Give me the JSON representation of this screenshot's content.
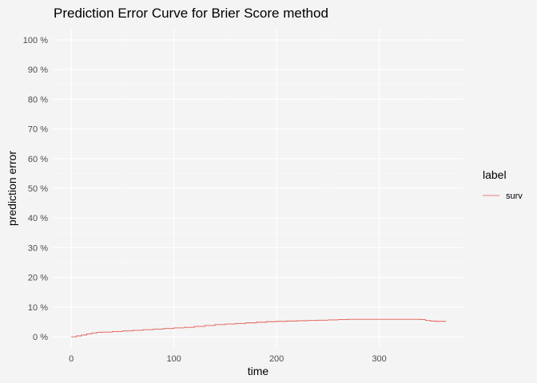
{
  "chart_data": {
    "type": "line",
    "title": "Prediction Error Curve for Brier Score method",
    "xlabel": "time",
    "ylabel": "prediction error",
    "xlim": [
      -18,
      382
    ],
    "ylim": [
      -0.04,
      1.04
    ],
    "x_ticks": [
      0,
      100,
      200,
      300
    ],
    "x_tick_labels": [
      "0",
      "100",
      "200",
      "300"
    ],
    "y_ticks": [
      0,
      0.1,
      0.2,
      0.3,
      0.4,
      0.5,
      0.6,
      0.7,
      0.8,
      0.9,
      1.0
    ],
    "y_tick_labels": [
      "0 %",
      "10 %",
      "20 %",
      "30 %",
      "40 %",
      "50 %",
      "60 %",
      "70 %",
      "80 %",
      "90 %",
      "100 %"
    ],
    "grid": true,
    "legend": {
      "title": "label",
      "position": "right",
      "entries": [
        {
          "name": "surv",
          "color": "#e15a4f"
        }
      ]
    },
    "series": [
      {
        "name": "surv",
        "color": "#e15a4f",
        "step": true,
        "x": [
          0,
          5,
          10,
          15,
          20,
          25,
          30,
          40,
          50,
          60,
          70,
          80,
          90,
          100,
          110,
          120,
          130,
          140,
          150,
          160,
          170,
          180,
          190,
          200,
          210,
          220,
          230,
          240,
          250,
          260,
          270,
          280,
          290,
          300,
          310,
          320,
          330,
          340,
          345,
          350,
          355,
          365
        ],
        "y": [
          0.0,
          0.003,
          0.006,
          0.01,
          0.013,
          0.015,
          0.016,
          0.018,
          0.02,
          0.022,
          0.024,
          0.026,
          0.028,
          0.03,
          0.032,
          0.035,
          0.038,
          0.041,
          0.043,
          0.045,
          0.047,
          0.049,
          0.051,
          0.052,
          0.053,
          0.054,
          0.055,
          0.056,
          0.057,
          0.058,
          0.059,
          0.059,
          0.059,
          0.059,
          0.059,
          0.059,
          0.059,
          0.058,
          0.055,
          0.053,
          0.052,
          0.052
        ]
      }
    ]
  }
}
